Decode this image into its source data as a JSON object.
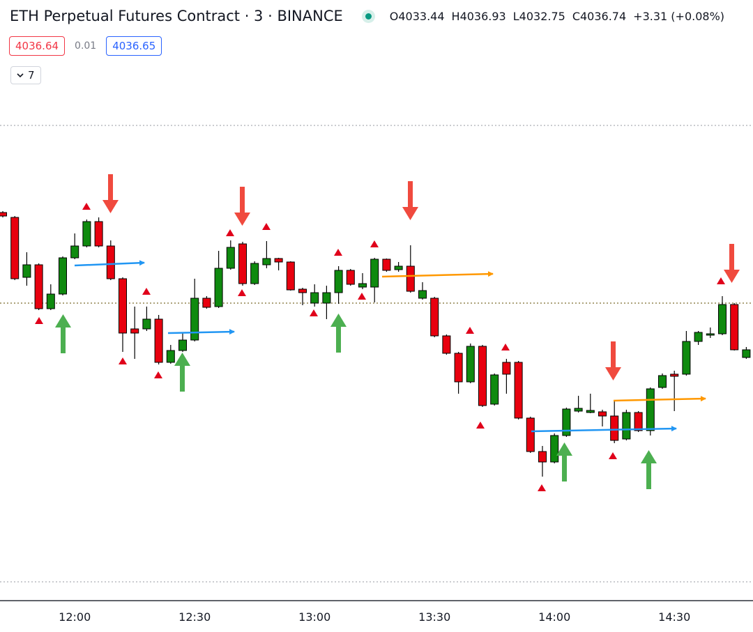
{
  "chart_data": {
    "type": "candlestick",
    "title": "ETH Perpetual Futures Contract · 3 · BINANCE",
    "legend": [
      {
        "key": "O",
        "value": "4033.44"
      },
      {
        "key": "H",
        "value": "4036.93"
      },
      {
        "key": "L",
        "value": "4032.75"
      },
      {
        "key": "C",
        "value": "4036.74"
      }
    ],
    "change": "+3.31 (+0.08%)",
    "bid": "4036.64",
    "spread": "0.01",
    "ask": "4036.65",
    "collapse_count": "7",
    "x_labels": [
      "12:00",
      "12:30",
      "13:00",
      "13:30",
      "14:00",
      "14:30"
    ],
    "up_color": "#0f8a0f",
    "down_color": "#e8000f",
    "ylim": [
      4002,
      4075
    ],
    "open": [
      4057.5,
      4056.8,
      4048.2,
      4050.0,
      4043.7,
      4045.8,
      4051.0,
      4052.7,
      4056.2,
      4052.7,
      4048.0,
      4040.8,
      4040.8,
      4042.2,
      4036.0,
      4037.7,
      4039.2,
      4045.2,
      4044.0,
      4049.5,
      4053.0,
      4047.3,
      4050.0,
      4050.9,
      4050.4,
      4046.5,
      4044.5,
      4044.5,
      4046.0,
      4049.2,
      4046.8,
      4046.8,
      4050.8,
      4049.3,
      4049.8,
      4045.2,
      4045.2,
      4039.8,
      4037.3,
      4033.2,
      4038.3,
      4030.0,
      4036.0,
      4036.0,
      4028.0,
      4023.2,
      4021.7,
      4025.5,
      4029.0,
      4028.8,
      4028.9,
      4028.3,
      4025.0,
      4028.8,
      4026.2,
      4032.4,
      4034.3,
      4034.3,
      4039.0,
      4039.9,
      4040.1,
      4044.3,
      4036.7
    ],
    "high": [
      4057.7,
      4057.0,
      4051.8,
      4050.2,
      4047.2,
      4051.2,
      4054.5,
      4056.5,
      4056.8,
      4053.5,
      4048.2,
      4044.0,
      4044.0,
      4042.8,
      4038.5,
      4040.2,
      4048.0,
      4045.5,
      4052.0,
      4053.5,
      4053.3,
      4050.5,
      4053.4,
      4051.0,
      4050.5,
      4046.7,
      4047.2,
      4047.0,
      4049.8,
      4049.4,
      4048.8,
      4051.0,
      4050.9,
      4050.4,
      4052.8,
      4047.5,
      4045.4,
      4040.0,
      4037.5,
      4038.7,
      4038.5,
      4034.4,
      4036.5,
      4036.2,
      4028.2,
      4024.0,
      4025.8,
      4029.5,
      4031.2,
      4031.5,
      4029.2,
      4030.5,
      4029.2,
      4029.0,
      4032.4,
      4034.4,
      4034.8,
      4040.5,
      4040.5,
      4041.0,
      4045.5,
      4044.5,
      4038.2
    ],
    "low": [
      4056.8,
      4047.8,
      4047.0,
      4043.5,
      4043.5,
      4045.6,
      4050.8,
      4052.5,
      4052.5,
      4047.8,
      4037.5,
      4036.5,
      4040.5,
      4035.7,
      4035.8,
      4037.5,
      4039.0,
      4043.7,
      4043.8,
      4049.3,
      4047.0,
      4047.1,
      4049.5,
      4049.2,
      4046.3,
      4044.2,
      4044.0,
      4042.2,
      4044.4,
      4047.0,
      4046.5,
      4044.6,
      4049.0,
      4049.0,
      4046.0,
      4045.0,
      4039.6,
      4037.1,
      4031.5,
      4033.0,
      4029.6,
      4029.8,
      4031.5,
      4027.8,
      4023.0,
      4019.6,
      4021.5,
      4025.3,
      4028.8,
      4028.7,
      4026.8,
      4024.4,
      4024.8,
      4026.0,
      4025.5,
      4032.2,
      4029.0,
      4034.1,
      4038.5,
      4039.5,
      4039.9,
      4037.7,
      4036.5
    ],
    "close": [
      4057.0,
      4048.0,
      4050.0,
      4043.7,
      4045.8,
      4051.0,
      4052.7,
      4056.2,
      4052.7,
      4048.0,
      4040.2,
      4040.2,
      4042.2,
      4036.0,
      4037.7,
      4039.2,
      4045.2,
      4043.9,
      4049.5,
      4052.5,
      4047.3,
      4050.2,
      4050.9,
      4050.4,
      4046.4,
      4046.0,
      4046.0,
      4046.0,
      4049.2,
      4047.2,
      4047.3,
      4050.8,
      4049.2,
      4049.8,
      4046.2,
      4046.3,
      4039.8,
      4037.3,
      4033.2,
      4038.3,
      4029.8,
      4034.2,
      4034.3,
      4028.0,
      4023.2,
      4021.7,
      4025.5,
      4029.3,
      4029.4,
      4029.1,
      4028.3,
      4024.8,
      4028.8,
      4026.2,
      4032.2,
      4034.1,
      4034.0,
      4039.0,
      4040.3,
      4040.1,
      4044.3,
      4037.8,
      4037.8
    ]
  }
}
